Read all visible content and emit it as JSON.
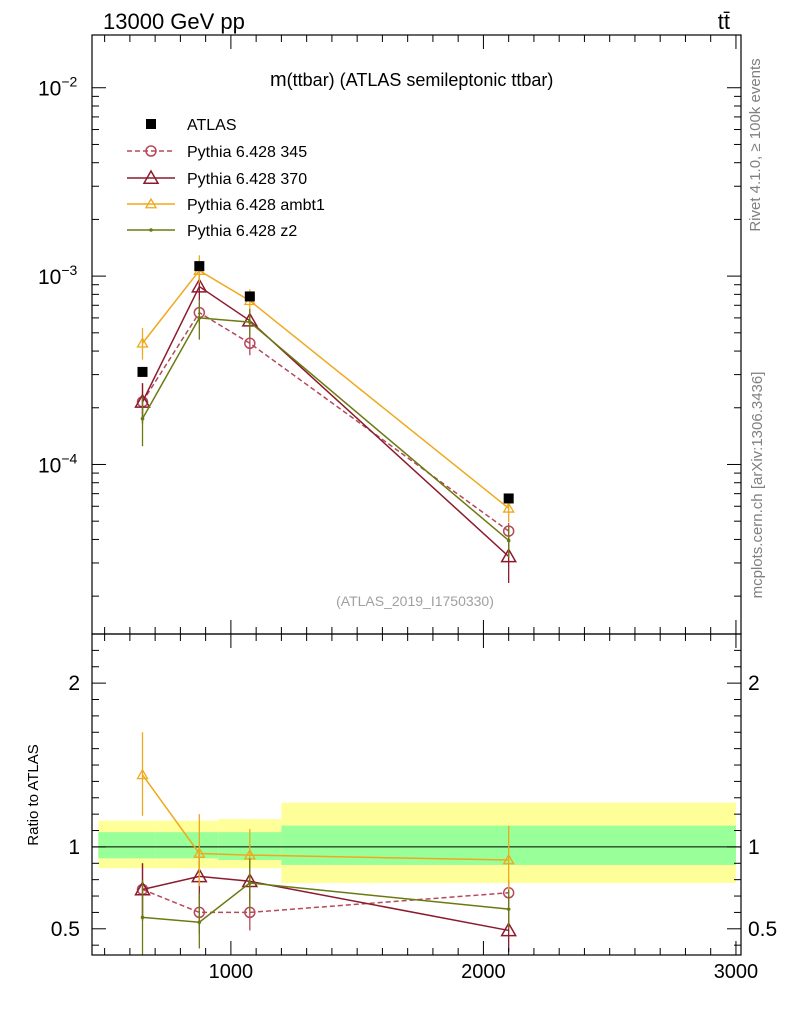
{
  "header": {
    "left_label": "13000 GeV pp",
    "right_label": "tt̄"
  },
  "side_labels": {
    "rivet": "Rivet 4.1.0, ≥ 100k events",
    "mcplots": "mcplots.cern.ch [arXiv:1306.3436]"
  },
  "chart_data": {
    "type": "line",
    "title": "m(ttbar) (ATLAS semileptonic ttbar)",
    "title_prefix": "m",
    "title_suffix": "(ttbar) (ATLAS semileptonic ttbar)",
    "analysis_id": "(ATLAS_2019_I1750330)",
    "xlim": [
      450,
      3020
    ],
    "ylim_log10": [
      -4.9,
      -1.72
    ],
    "x_ticks": [
      {
        "value": 1000,
        "label": "1000"
      },
      {
        "value": 2000,
        "label": "2000"
      },
      {
        "value": 3000,
        "label": "3000"
      }
    ],
    "y_ticks": [
      {
        "exp": -4,
        "base": "10",
        "sup": "−4"
      },
      {
        "exp": -3,
        "base": "10",
        "sup": "−3"
      },
      {
        "exp": -2,
        "base": "10",
        "sup": "−2"
      }
    ],
    "ratio": {
      "ylabel": "Ratio to ATLAS",
      "ylim": [
        0.34,
        2.3
      ],
      "y_ticks": [
        {
          "value": 0.5,
          "label": "0.5"
        },
        {
          "value": 1,
          "label": "1"
        },
        {
          "value": 2,
          "label": "2"
        }
      ],
      "bands": [
        {
          "x0": 475,
          "x1": 700,
          "inner": [
            0.93,
            1.09
          ],
          "outer": [
            0.87,
            1.16
          ]
        },
        {
          "x0": 700,
          "x1": 950,
          "inner": [
            0.93,
            1.09
          ],
          "outer": [
            0.87,
            1.16
          ]
        },
        {
          "x0": 950,
          "x1": 1200,
          "inner": [
            0.92,
            1.09
          ],
          "outer": [
            0.87,
            1.17
          ]
        },
        {
          "x0": 1200,
          "x1": 3000,
          "inner": [
            0.89,
            1.13
          ],
          "outer": [
            0.78,
            1.27
          ]
        }
      ]
    },
    "data": {
      "name": "ATLAS",
      "x": [
        650,
        875,
        1075,
        2100
      ],
      "y": [
        0.00031,
        0.00113,
        0.00078,
        6.6e-05
      ]
    },
    "series": [
      {
        "name": "Pythia 6.428 345",
        "color": "#b5485a",
        "dash": "5,3",
        "marker": "circle",
        "x": [
          650,
          875,
          1075,
          2100
        ],
        "y": [
          0.000215,
          0.00064,
          0.00044,
          4.43e-05
        ],
        "err_lo": [
          0.000172,
          0.00056,
          0.00038,
          3.95e-05
        ],
        "err_hi": [
          0.00027,
          0.00072,
          0.0005,
          4.9e-05
        ],
        "ratio": [
          0.74,
          0.6,
          0.6,
          0.72
        ],
        "ratio_lo": [
          0.58,
          0.47,
          0.49,
          0.64
        ],
        "ratio_hi": [
          0.9,
          0.72,
          0.72,
          0.8
        ]
      },
      {
        "name": "Pythia 6.428 370",
        "color": "#8b1a2d",
        "dash": "",
        "marker": "triangle",
        "x": [
          650,
          875,
          1075,
          2100
        ],
        "y": [
          0.000215,
          0.00088,
          0.00058,
          3.25e-05
        ],
        "err_lo": [
          0.000165,
          0.00074,
          0.0005,
          2.35e-05
        ],
        "err_hi": [
          0.00027,
          0.00101,
          0.00066,
          4.15e-05
        ],
        "ratio": [
          0.74,
          0.82,
          0.79,
          0.49
        ],
        "ratio_lo": [
          0.55,
          0.68,
          0.67,
          0.36
        ],
        "ratio_hi": [
          0.9,
          0.96,
          0.92,
          0.62
        ]
      },
      {
        "name": "Pythia 6.428 ambt1",
        "color": "#f0a81c",
        "dash": "",
        "marker": "triangle-small",
        "x": [
          650,
          875,
          1075,
          2100
        ],
        "y": [
          0.00044,
          0.00107,
          0.00074,
          5.85e-05
        ],
        "err_lo": [
          0.00036,
          0.00092,
          0.00065,
          4.95e-05
        ],
        "err_hi": [
          0.00053,
          0.00129,
          0.00085,
          6.85e-05
        ],
        "ratio": [
          1.44,
          0.96,
          0.95,
          0.92
        ],
        "ratio_lo": [
          1.19,
          0.76,
          0.8,
          0.71
        ],
        "ratio_hi": [
          1.7,
          1.2,
          1.11,
          1.13
        ]
      },
      {
        "name": "Pythia 6.428 z2",
        "color": "#6b7a10",
        "dash": "",
        "marker": "dot",
        "x": [
          650,
          875,
          1075,
          2100
        ],
        "y": [
          0.000175,
          0.0006,
          0.00057,
          3.95e-05
        ],
        "err_lo": [
          0.000125,
          0.00046,
          0.00047,
          3.2e-05
        ],
        "err_hi": [
          0.00023,
          0.00075,
          0.00067,
          4.7e-05
        ],
        "ratio": [
          0.57,
          0.54,
          0.78,
          0.62
        ],
        "ratio_lo": [
          0.34,
          0.38,
          0.61,
          0.5
        ],
        "ratio_hi": [
          0.8,
          0.72,
          0.93,
          0.74
        ]
      }
    ]
  }
}
